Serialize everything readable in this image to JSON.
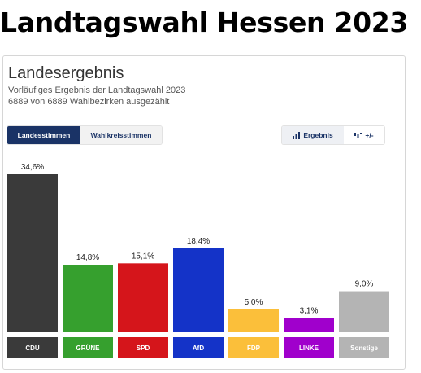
{
  "headline": "Landtagswahl Hessen 2023",
  "card": {
    "title": "Landesergebnis",
    "subtitle": "Vorläufiges Ergebnis der Landtagswahl 2023",
    "count": "6889 von 6889 Wahlbezirken ausgezählt"
  },
  "tabs": {
    "landesstimmen": "Landesstimmen",
    "wahlkreisstimmen": "Wahlkreisstimmen"
  },
  "views": {
    "ergebnis": "Ergebnis",
    "diff": "+/-"
  },
  "colors": {
    "accent": "#1a3366"
  },
  "chart_data": {
    "type": "bar",
    "categories": [
      "CDU",
      "GRÜNE",
      "SPD",
      "AfD",
      "FDP",
      "LINKE",
      "Sonstige"
    ],
    "values": [
      34.6,
      14.8,
      15.1,
      18.4,
      5.0,
      3.1,
      9.0
    ],
    "value_labels": [
      "34,6%",
      "14,8%",
      "15,1%",
      "18,4%",
      "5,0%",
      "3,1%",
      "9,0%"
    ],
    "colors": [
      "#3a3a3a",
      "#36a02e",
      "#d5151b",
      "#1433c8",
      "#fbbf3a",
      "#a000cc",
      "#b4b4b4"
    ],
    "label_bg_colors": [
      "#3a3a3a",
      "#36a02e",
      "#d5151b",
      "#1433c8",
      "#fbbf3a",
      "#a000cc",
      "#b4b4b4"
    ],
    "label_text_colors": [
      "#ffffff",
      "#ffffff",
      "#ffffff",
      "#ffffff",
      "#ffffff",
      "#ffffff",
      "#ffffff"
    ],
    "ylim": [
      0,
      34.6
    ],
    "grid": false,
    "legend": "none"
  }
}
